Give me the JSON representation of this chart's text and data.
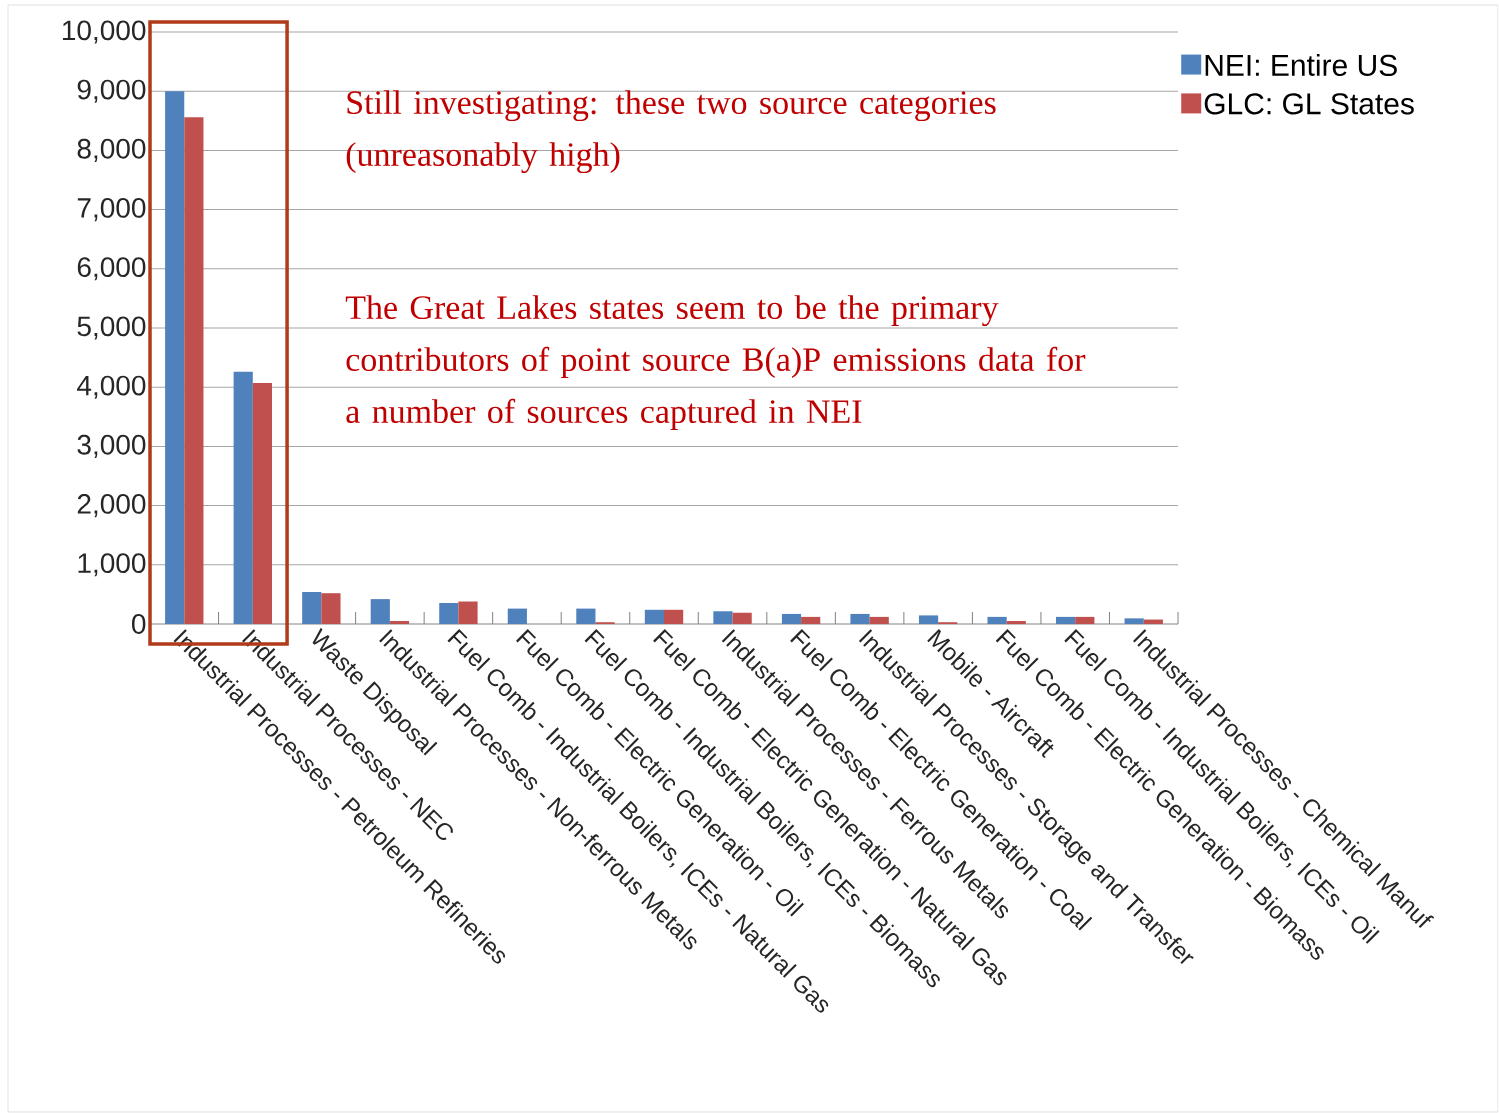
{
  "chart_data": {
    "type": "bar",
    "categories": [
      "Industrial Processes - Petroleum Refineries",
      "Industrial Processes - NEC",
      "Waste Disposal",
      "Industrial Processes - Non-ferrous Metals",
      "Fuel Comb - Industrial Boilers, ICEs - Natural Gas",
      "Fuel Comb - Electric Generation - Oil",
      "Fuel Comb - Industrial Boilers, ICEs - Biomass",
      "Fuel Comb - Electric Generation - Natural Gas",
      "Industrial Processes - Ferrous Metals",
      "Fuel Comb - Electric Generation - Coal",
      "Industrial Processes - Storage and Transfer",
      "Mobile - Aircraft",
      "Fuel Comb - Electric Generation - Biomass",
      "Fuel Comb - Industrial Boilers, ICEs - Oil",
      "Industrial Processes - Chemical Manuf"
    ],
    "series": [
      {
        "name": "NEI: Entire US",
        "color": "#4f81bd",
        "values": [
          9000,
          4260,
          540,
          420,
          355,
          260,
          260,
          240,
          215,
          170,
          170,
          145,
          120,
          120,
          95
        ]
      },
      {
        "name": "GLC: GL States",
        "color": "#c0504d",
        "values": [
          8560,
          4070,
          520,
          50,
          380,
          0,
          30,
          240,
          190,
          120,
          120,
          30,
          50,
          120,
          75
        ]
      }
    ],
    "ylim": [
      0,
      10000
    ],
    "yticks": [
      0,
      {
        "value": 1000,
        "label": "1,000"
      },
      {
        "value": 2000,
        "label": "2,000"
      },
      {
        "value": 3000,
        "label": "3,000"
      },
      {
        "value": 4000,
        "label": "4,000"
      },
      {
        "value": 5000,
        "label": "5,000"
      },
      {
        "value": 6000,
        "label": "6,000"
      },
      {
        "value": 7000,
        "label": "7,000"
      },
      {
        "value": 8000,
        "label": "8,000"
      },
      {
        "value": 9000,
        "label": "9,000"
      },
      {
        "value": 10000,
        "label": "10,000"
      }
    ],
    "grid": "y",
    "legend": "top right",
    "annotations": [
      "Still investigating: these two source categories (unreasonably high)",
      "The Great Lakes states seem to be the primary contributors of point source B(a)P emissions data for a number of sources captured in NEI"
    ]
  }
}
